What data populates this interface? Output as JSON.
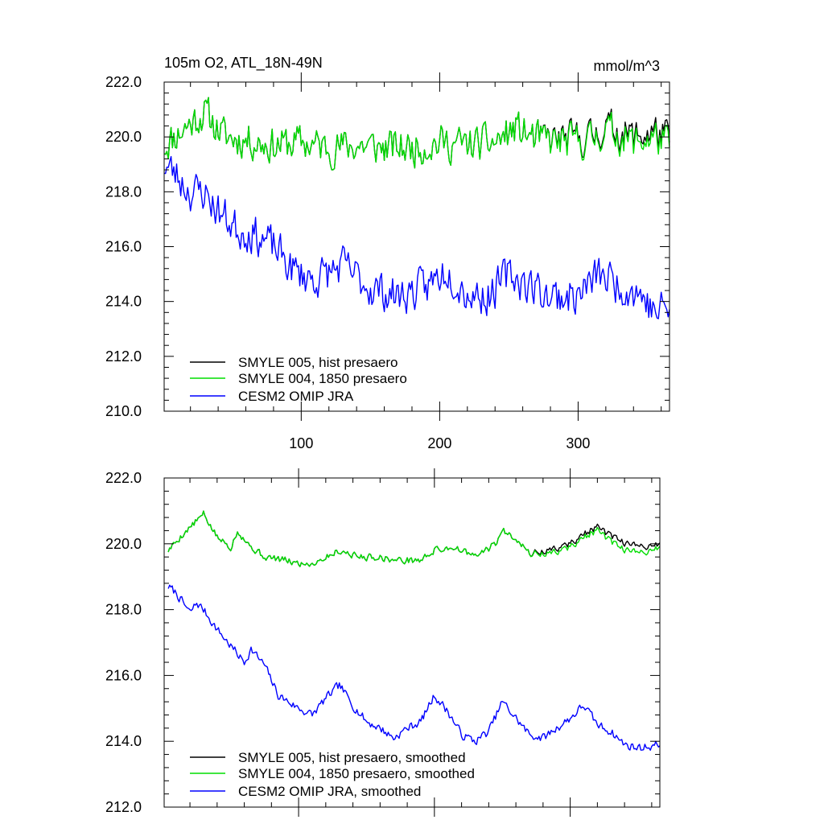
{
  "colors": {
    "smyle005": "#000000",
    "smyle004": "#00dd00",
    "omip": "#0000ff",
    "axis": "#000000"
  },
  "chart_data": [
    {
      "type": "line",
      "title": "105m O2, ATL_18N-49N",
      "units": "mmol/m^3",
      "xlim": [
        1,
        366
      ],
      "ylim": [
        210,
        222
      ],
      "yticks": [
        210,
        212,
        214,
        216,
        218,
        220,
        222
      ],
      "ytick_labels": [
        "210.0",
        "212.0",
        "214.0",
        "216.0",
        "218.0",
        "220.0",
        "222.0"
      ],
      "xticks": [
        100,
        200,
        300
      ],
      "xtick_labels": [
        "100",
        "200",
        "300"
      ],
      "legend_position": "bottom-left",
      "series": [
        {
          "name": "SMYLE 005, hist presaero",
          "color": "#000000",
          "anchors": [
            [
              1,
              219.7
            ],
            [
              15,
              220.3
            ],
            [
              30,
              220.9
            ],
            [
              45,
              220.0
            ],
            [
              60,
              219.9
            ],
            [
              80,
              219.7
            ],
            [
              100,
              219.8
            ],
            [
              120,
              219.6
            ],
            [
              140,
              219.7
            ],
            [
              160,
              219.6
            ],
            [
              180,
              219.6
            ],
            [
              200,
              219.8
            ],
            [
              220,
              219.7
            ],
            [
              240,
              219.8
            ],
            [
              255,
              220.3
            ],
            [
              270,
              219.9
            ],
            [
              290,
              219.9
            ],
            [
              310,
              220.0
            ],
            [
              320,
              220.4
            ],
            [
              340,
              220.0
            ],
            [
              355,
              220.2
            ],
            [
              366,
              219.9
            ]
          ],
          "noise": 0.75,
          "seed": 11
        },
        {
          "name": "SMYLE 004, 1850 presaero",
          "color": "#00dd00",
          "anchors": [
            [
              1,
              219.7
            ],
            [
              15,
              220.3
            ],
            [
              30,
              220.9
            ],
            [
              45,
              220.0
            ],
            [
              60,
              219.9
            ],
            [
              80,
              219.7
            ],
            [
              100,
              219.8
            ],
            [
              120,
              219.6
            ],
            [
              140,
              219.7
            ],
            [
              160,
              219.6
            ],
            [
              180,
              219.6
            ],
            [
              200,
              219.8
            ],
            [
              220,
              219.7
            ],
            [
              240,
              219.8
            ],
            [
              255,
              220.3
            ],
            [
              270,
              219.9
            ],
            [
              290,
              219.8
            ],
            [
              310,
              219.9
            ],
            [
              320,
              220.3
            ],
            [
              340,
              219.8
            ],
            [
              355,
              220.0
            ],
            [
              366,
              219.7
            ]
          ],
          "noise": 0.75,
          "seed": 11
        },
        {
          "name": "CESM2 OMIP JRA",
          "color": "#0000ff",
          "anchors": [
            [
              1,
              219.0
            ],
            [
              10,
              218.6
            ],
            [
              20,
              218.0
            ],
            [
              30,
              218.0
            ],
            [
              40,
              217.3
            ],
            [
              55,
              216.6
            ],
            [
              65,
              216.5
            ],
            [
              80,
              216.0
            ],
            [
              95,
              215.1
            ],
            [
              110,
              214.8
            ],
            [
              130,
              215.3
            ],
            [
              150,
              214.5
            ],
            [
              170,
              214.2
            ],
            [
              190,
              214.5
            ],
            [
              205,
              215.2
            ],
            [
              220,
              214.3
            ],
            [
              235,
              214.2
            ],
            [
              250,
              215.0
            ],
            [
              265,
              214.6
            ],
            [
              280,
              214.2
            ],
            [
              300,
              214.2
            ],
            [
              315,
              215.0
            ],
            [
              330,
              214.6
            ],
            [
              345,
              214.3
            ],
            [
              355,
              213.6
            ],
            [
              366,
              213.8
            ]
          ],
          "noise": 0.8,
          "seed": 23
        }
      ]
    },
    {
      "type": "line",
      "title": "",
      "units": "",
      "xlim": [
        1,
        366
      ],
      "ylim": [
        212,
        222
      ],
      "yticks": [
        212,
        214,
        216,
        218,
        220,
        222
      ],
      "ytick_labels": [
        "212.0",
        "214.0",
        "216.0",
        "218.0",
        "220.0",
        "222.0"
      ],
      "xticks": [
        100,
        200,
        300
      ],
      "xtick_labels": [],
      "legend_position": "bottom-left",
      "series": [
        {
          "name": "SMYLE 005, hist presaero, smoothed",
          "color": "#000000",
          "anchors": [
            [
              4,
              219.8
            ],
            [
              15,
              220.3
            ],
            [
              30,
              220.9
            ],
            [
              40,
              220.2
            ],
            [
              50,
              219.9
            ],
            [
              55,
              220.4
            ],
            [
              65,
              219.9
            ],
            [
              75,
              219.6
            ],
            [
              90,
              219.5
            ],
            [
              100,
              219.4
            ],
            [
              110,
              219.4
            ],
            [
              130,
              219.8
            ],
            [
              145,
              219.6
            ],
            [
              160,
              219.6
            ],
            [
              170,
              219.5
            ],
            [
              190,
              219.5
            ],
            [
              200,
              219.8
            ],
            [
              215,
              219.9
            ],
            [
              230,
              219.6
            ],
            [
              245,
              220.0
            ],
            [
              250,
              220.4
            ],
            [
              260,
              220.2
            ],
            [
              270,
              219.7
            ],
            [
              285,
              219.8
            ],
            [
              300,
              220.0
            ],
            [
              310,
              220.3
            ],
            [
              320,
              220.5
            ],
            [
              335,
              220.1
            ],
            [
              350,
              219.9
            ],
            [
              366,
              220.0
            ]
          ],
          "noise": 0.12,
          "seed": 5
        },
        {
          "name": "SMYLE 004, 1850 presaero, smoothed",
          "color": "#00dd00",
          "anchors": [
            [
              4,
              219.8
            ],
            [
              15,
              220.3
            ],
            [
              30,
              220.9
            ],
            [
              40,
              220.2
            ],
            [
              50,
              219.9
            ],
            [
              55,
              220.4
            ],
            [
              65,
              219.9
            ],
            [
              75,
              219.6
            ],
            [
              90,
              219.5
            ],
            [
              100,
              219.4
            ],
            [
              110,
              219.4
            ],
            [
              130,
              219.8
            ],
            [
              145,
              219.6
            ],
            [
              160,
              219.6
            ],
            [
              170,
              219.5
            ],
            [
              190,
              219.5
            ],
            [
              200,
              219.8
            ],
            [
              215,
              219.9
            ],
            [
              230,
              219.6
            ],
            [
              245,
              220.0
            ],
            [
              250,
              220.4
            ],
            [
              260,
              220.2
            ],
            [
              270,
              219.7
            ],
            [
              285,
              219.7
            ],
            [
              300,
              219.9
            ],
            [
              310,
              220.2
            ],
            [
              320,
              220.4
            ],
            [
              335,
              219.9
            ],
            [
              350,
              219.7
            ],
            [
              366,
              219.9
            ]
          ],
          "noise": 0.12,
          "seed": 5
        },
        {
          "name": "CESM2 OMIP JRA, smoothed",
          "color": "#0000ff",
          "anchors": [
            [
              4,
              218.7
            ],
            [
              10,
              218.5
            ],
            [
              20,
              217.9
            ],
            [
              25,
              218.2
            ],
            [
              30,
              218.0
            ],
            [
              40,
              217.4
            ],
            [
              50,
              216.9
            ],
            [
              60,
              216.4
            ],
            [
              65,
              216.8
            ],
            [
              75,
              216.3
            ],
            [
              85,
              215.4
            ],
            [
              100,
              215.0
            ],
            [
              110,
              214.8
            ],
            [
              120,
              215.3
            ],
            [
              130,
              215.7
            ],
            [
              140,
              215.1
            ],
            [
              150,
              214.6
            ],
            [
              160,
              214.4
            ],
            [
              170,
              214.1
            ],
            [
              180,
              214.4
            ],
            [
              190,
              214.6
            ],
            [
              200,
              215.4
            ],
            [
              210,
              214.9
            ],
            [
              220,
              214.2
            ],
            [
              230,
              214.0
            ],
            [
              240,
              214.3
            ],
            [
              250,
              215.2
            ],
            [
              260,
              214.7
            ],
            [
              270,
              214.2
            ],
            [
              280,
              214.1
            ],
            [
              290,
              214.4
            ],
            [
              300,
              214.7
            ],
            [
              310,
              215.1
            ],
            [
              320,
              214.5
            ],
            [
              330,
              214.3
            ],
            [
              340,
              213.9
            ],
            [
              350,
              213.8
            ],
            [
              366,
              213.9
            ]
          ],
          "noise": 0.15,
          "seed": 7
        }
      ]
    }
  ]
}
